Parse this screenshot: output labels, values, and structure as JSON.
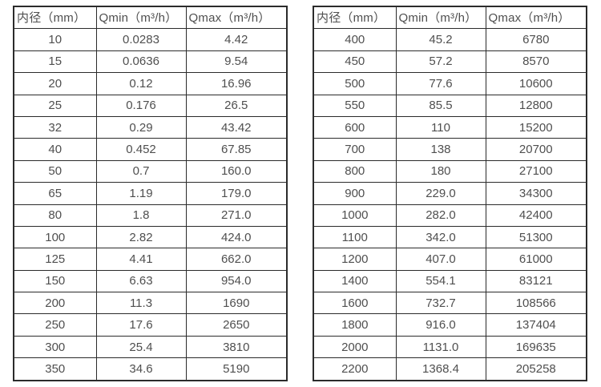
{
  "colors": {
    "border": "#2b2b2b",
    "text": "#4f4f4f",
    "background": "#ffffff"
  },
  "tables": [
    {
      "name": "flow-table-small-diameters",
      "headers": [
        "内径（mm）",
        "Qmin（m³/h）",
        "Qmax（m³/h）"
      ],
      "rows": [
        [
          "10",
          "0.0283",
          "4.42"
        ],
        [
          "15",
          "0.0636",
          "9.54"
        ],
        [
          "20",
          "0.12",
          "16.96"
        ],
        [
          "25",
          "0.176",
          "26.5"
        ],
        [
          "32",
          "0.29",
          "43.42"
        ],
        [
          "40",
          "0.452",
          "67.85"
        ],
        [
          "50",
          "0.7",
          "160.0"
        ],
        [
          "65",
          "1.19",
          "179.0"
        ],
        [
          "80",
          "1.8",
          "271.0"
        ],
        [
          "100",
          "2.82",
          "424.0"
        ],
        [
          "125",
          "4.41",
          "662.0"
        ],
        [
          "150",
          "6.63",
          "954.0"
        ],
        [
          "200",
          "11.3",
          "1690"
        ],
        [
          "250",
          "17.6",
          "2650"
        ],
        [
          "300",
          "25.4",
          "3810"
        ],
        [
          "350",
          "34.6",
          "5190"
        ]
      ]
    },
    {
      "name": "flow-table-large-diameters",
      "headers": [
        "内径（mm）",
        "Qmin（m³/h）",
        "Qmax（m³/h）"
      ],
      "rows": [
        [
          "400",
          "45.2",
          "6780"
        ],
        [
          "450",
          "57.2",
          "8570"
        ],
        [
          "500",
          "77.6",
          "10600"
        ],
        [
          "550",
          "85.5",
          "12800"
        ],
        [
          "600",
          "110",
          "15200"
        ],
        [
          "700",
          "138",
          "20700"
        ],
        [
          "800",
          "180",
          "27100"
        ],
        [
          "900",
          "229.0",
          "34300"
        ],
        [
          "1000",
          "282.0",
          "42400"
        ],
        [
          "1100",
          "342.0",
          "51300"
        ],
        [
          "1200",
          "407.0",
          "61000"
        ],
        [
          "1400",
          "554.1",
          "83121"
        ],
        [
          "1600",
          "732.7",
          "108566"
        ],
        [
          "1800",
          "916.0",
          "137404"
        ],
        [
          "2000",
          "1131.0",
          "169635"
        ],
        [
          "2200",
          "1368.4",
          "205258"
        ]
      ]
    }
  ]
}
